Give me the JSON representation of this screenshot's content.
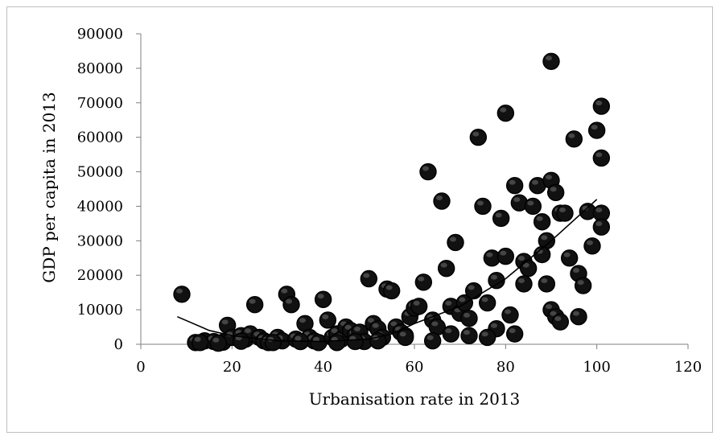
{
  "chart_data": {
    "type": "scatter",
    "title": "",
    "xlabel": "Urbanisation rate  in 2013",
    "ylabel": "GDP per capita in 2013",
    "xlim": [
      0,
      120
    ],
    "ylim": [
      0,
      90000
    ],
    "x_ticks": [
      0,
      20,
      40,
      60,
      80,
      100,
      120
    ],
    "y_ticks": [
      0,
      10000,
      20000,
      30000,
      40000,
      50000,
      60000,
      70000,
      80000,
      90000
    ],
    "grid": false,
    "legend": "none",
    "marker_color": "#111111",
    "trendline": {
      "type": "polynomial",
      "color": "#000000",
      "points": [
        [
          8,
          8000
        ],
        [
          15,
          4000
        ],
        [
          20,
          2500
        ],
        [
          30,
          1000
        ],
        [
          40,
          800
        ],
        [
          50,
          1500
        ],
        [
          55,
          3000
        ],
        [
          60,
          6000
        ],
        [
          70,
          11000
        ],
        [
          80,
          19000
        ],
        [
          90,
          30000
        ],
        [
          100,
          42000
        ]
      ]
    },
    "series": [
      {
        "points": [
          [
            9,
            14500
          ],
          [
            12,
            500
          ],
          [
            14,
            1000
          ],
          [
            16,
            800
          ],
          [
            18,
            600
          ],
          [
            19,
            5500
          ],
          [
            20,
            2000
          ],
          [
            22,
            2500
          ],
          [
            23,
            1500
          ],
          [
            24,
            3000
          ],
          [
            25,
            11500
          ],
          [
            26,
            2000
          ],
          [
            27,
            1000
          ],
          [
            28,
            500
          ],
          [
            30,
            2000
          ],
          [
            31,
            1000
          ],
          [
            32,
            14500
          ],
          [
            33,
            11500
          ],
          [
            34,
            1500
          ],
          [
            35,
            800
          ],
          [
            36,
            6000
          ],
          [
            37,
            2000
          ],
          [
            38,
            1000
          ],
          [
            39,
            500
          ],
          [
            40,
            13000
          ],
          [
            41,
            7000
          ],
          [
            42,
            2000
          ],
          [
            43,
            3000
          ],
          [
            44,
            1500
          ],
          [
            45,
            5000
          ],
          [
            46,
            4000
          ],
          [
            47,
            2500
          ],
          [
            48,
            3500
          ],
          [
            49,
            800
          ],
          [
            50,
            19000
          ],
          [
            51,
            6000
          ],
          [
            52,
            4500
          ],
          [
            53,
            2000
          ],
          [
            54,
            16000
          ],
          [
            55,
            15500
          ],
          [
            56,
            5000
          ],
          [
            57,
            3500
          ],
          [
            58,
            2500
          ],
          [
            59,
            8000
          ],
          [
            60,
            10500
          ],
          [
            61,
            11000
          ],
          [
            62,
            18000
          ],
          [
            63,
            50000
          ],
          [
            64,
            7000
          ],
          [
            65,
            5000
          ],
          [
            66,
            41500
          ],
          [
            67,
            22000
          ],
          [
            68,
            11000
          ],
          [
            69,
            29500
          ],
          [
            70,
            9000
          ],
          [
            71,
            12000
          ],
          [
            72,
            7500
          ],
          [
            73,
            15500
          ],
          [
            74,
            60000
          ],
          [
            75,
            40000
          ],
          [
            76,
            12000
          ],
          [
            77,
            25000
          ],
          [
            78,
            18500
          ],
          [
            79,
            36500
          ],
          [
            80,
            25500
          ],
          [
            80,
            67000
          ],
          [
            81,
            8500
          ],
          [
            82,
            46000
          ],
          [
            83,
            41000
          ],
          [
            84,
            24000
          ],
          [
            85,
            22000
          ],
          [
            84,
            17500
          ],
          [
            86,
            40000
          ],
          [
            87,
            46000
          ],
          [
            88,
            35500
          ],
          [
            89,
            30000
          ],
          [
            90,
            47500
          ],
          [
            91,
            44000
          ],
          [
            92,
            38000
          ],
          [
            88,
            26000
          ],
          [
            89,
            17500
          ],
          [
            90,
            10000
          ],
          [
            91,
            8000
          ],
          [
            92,
            6500
          ],
          [
            90,
            82000
          ],
          [
            93,
            38000
          ],
          [
            94,
            25000
          ],
          [
            95,
            59500
          ],
          [
            96,
            20500
          ],
          [
            97,
            17000
          ],
          [
            98,
            38500
          ],
          [
            99,
            28500
          ],
          [
            100,
            62000
          ],
          [
            101,
            69000
          ],
          [
            101,
            54000
          ],
          [
            101,
            38000
          ],
          [
            101,
            34000
          ],
          [
            96,
            8000
          ],
          [
            82,
            3000
          ],
          [
            78,
            4500
          ],
          [
            76,
            2000
          ],
          [
            72,
            2500
          ],
          [
            68,
            3000
          ],
          [
            64,
            1000
          ],
          [
            58,
            2000
          ],
          [
            52,
            1000
          ],
          [
            47,
            800
          ],
          [
            43,
            500
          ],
          [
            35,
            800
          ],
          [
            29,
            500
          ],
          [
            22,
            900
          ],
          [
            17,
            300
          ],
          [
            13,
            500
          ]
        ]
      }
    ]
  }
}
